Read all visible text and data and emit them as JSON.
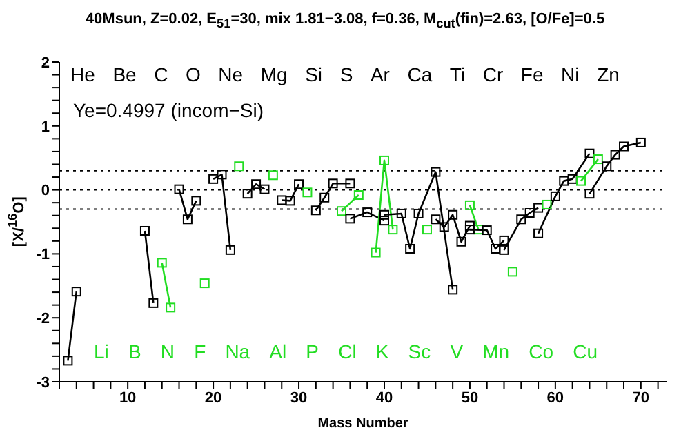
{
  "chart_data": {
    "type": "line",
    "title": "40Msun, Z=0.02, E$_{51}$=30, mix 1.81−3.08, f=0.36, M$_{cut}$(fin)=2.63, [O/Fe]=0.5",
    "xlabel": "Mass Number",
    "ylabel": "[X/$^{16}$O]",
    "marker": "square",
    "line_style": "solid",
    "xlim": [
      2,
      73
    ],
    "ylim": [
      -3,
      2
    ],
    "xticks": [
      {
        "value": 2,
        "label": null
      },
      {
        "value": 4,
        "label": null
      },
      {
        "value": 6,
        "label": null
      },
      {
        "value": 8,
        "label": null
      },
      10,
      {
        "value": 12,
        "label": null
      },
      {
        "value": 14,
        "label": null
      },
      {
        "value": 16,
        "label": null
      },
      {
        "value": 18,
        "label": null
      },
      20,
      {
        "value": 22,
        "label": null
      },
      {
        "value": 24,
        "label": null
      },
      {
        "value": 26,
        "label": null
      },
      {
        "value": 28,
        "label": null
      },
      30,
      {
        "value": 32,
        "label": null
      },
      {
        "value": 34,
        "label": null
      },
      {
        "value": 36,
        "label": null
      },
      {
        "value": 38,
        "label": null
      },
      40,
      {
        "value": 42,
        "label": null
      },
      {
        "value": 44,
        "label": null
      },
      {
        "value": 46,
        "label": null
      },
      {
        "value": 48,
        "label": null
      },
      50,
      {
        "value": 52,
        "label": null
      },
      {
        "value": 54,
        "label": null
      },
      {
        "value": 56,
        "label": null
      },
      {
        "value": 58,
        "label": null
      },
      60,
      {
        "value": 62,
        "label": null
      },
      {
        "value": 64,
        "label": null
      },
      {
        "value": 66,
        "label": null
      },
      {
        "value": 68,
        "label": null
      },
      70,
      {
        "value": 72,
        "label": null
      }
    ],
    "yticks": [
      -3,
      {
        "value": -2.8,
        "label": null
      },
      {
        "value": -2.6,
        "label": null
      },
      {
        "value": -2.4,
        "label": null
      },
      {
        "value": -2.2,
        "label": null
      },
      -2,
      {
        "value": -1.8,
        "label": null
      },
      {
        "value": -1.6,
        "label": null
      },
      {
        "value": -1.4,
        "label": null
      },
      {
        "value": -1.2,
        "label": null
      },
      -1,
      {
        "value": -0.8,
        "label": null
      },
      {
        "value": -0.6,
        "label": null
      },
      {
        "value": -0.4,
        "label": null
      },
      {
        "value": -0.2,
        "label": null
      },
      0,
      {
        "value": 0.2,
        "label": null
      },
      {
        "value": 0.4,
        "label": null
      },
      {
        "value": 0.6,
        "label": null
      },
      {
        "value": 0.8,
        "label": null
      },
      1,
      {
        "value": 1.2,
        "label": null
      },
      {
        "value": 1.4,
        "label": null
      },
      {
        "value": 1.6,
        "label": null
      },
      {
        "value": 1.8,
        "label": null
      },
      2
    ],
    "ref_lines": [
      {
        "axis": "y",
        "value": 0.3,
        "line_style": "dotted",
        "color": "#000000"
      },
      {
        "axis": "y",
        "value": 0,
        "line_style": "dotted",
        "color": "#000000"
      },
      {
        "axis": "y",
        "value": -0.3,
        "line_style": "dotted",
        "color": "#000000"
      }
    ],
    "series": [
      {
        "color": "#000000",
        "x": [
          3,
          4
        ],
        "values": [
          -2.67,
          -1.59
        ]
      },
      {
        "color": "#000000",
        "x": [
          12,
          13
        ],
        "values": [
          -0.64,
          -1.77
        ]
      },
      {
        "color": "#22dd22",
        "x": [
          14,
          15
        ],
        "values": [
          -1.14,
          -1.84
        ]
      },
      {
        "color": "#000000",
        "x": [
          16,
          17,
          18
        ],
        "values": [
          0.01,
          -0.46,
          -0.17
        ]
      },
      {
        "color": "#22dd22",
        "x": [
          19
        ],
        "values": [
          -1.46
        ]
      },
      {
        "color": "#000000",
        "x": [
          20,
          21,
          22
        ],
        "values": [
          0.17,
          0.24,
          -0.94
        ]
      },
      {
        "color": "#22dd22",
        "x": [
          23
        ],
        "values": [
          0.37
        ]
      },
      {
        "color": "#000000",
        "x": [
          24,
          25,
          26
        ],
        "values": [
          -0.06,
          0.09,
          0.01
        ]
      },
      {
        "color": "#22dd22",
        "x": [
          27
        ],
        "values": [
          0.23
        ]
      },
      {
        "color": "#000000",
        "x": [
          28,
          29,
          30
        ],
        "values": [
          -0.16,
          -0.17,
          0.09
        ]
      },
      {
        "color": "#22dd22",
        "x": [
          31
        ],
        "values": [
          -0.04
        ]
      },
      {
        "color": "#000000",
        "x": [
          32,
          33,
          34,
          36
        ],
        "values": [
          -0.32,
          -0.12,
          0.1,
          0.1
        ]
      },
      {
        "color": "#22dd22",
        "x": [
          35,
          37
        ],
        "values": [
          -0.33,
          -0.08
        ]
      },
      {
        "color": "#000000",
        "x": [
          36,
          38,
          40
        ],
        "values": [
          -0.45,
          -0.35,
          -0.48
        ]
      },
      {
        "color": "#22dd22",
        "x": [
          39,
          40,
          41
        ],
        "values": [
          -0.98,
          0.46,
          -0.62
        ]
      },
      {
        "color": "#000000",
        "x": [
          40,
          42,
          43,
          44,
          46,
          48
        ],
        "values": [
          -0.39,
          -0.37,
          -0.92,
          -0.37,
          0.28,
          -1.56
        ]
      },
      {
        "color": "#22dd22",
        "x": [
          45
        ],
        "values": [
          -0.62
        ]
      },
      {
        "color": "#000000",
        "x": [
          46,
          47,
          48,
          49,
          50
        ],
        "values": [
          -0.46,
          -0.58,
          -0.39,
          -0.81,
          -0.56
        ]
      },
      {
        "color": "#22dd22",
        "x": [
          50,
          51
        ],
        "values": [
          -0.24,
          -0.62
        ]
      },
      {
        "color": "#000000",
        "x": [
          50,
          52,
          53,
          54
        ],
        "values": [
          -0.62,
          -0.63,
          -0.92,
          -0.79
        ]
      },
      {
        "color": "#22dd22",
        "x": [
          55
        ],
        "values": [
          -1.28
        ]
      },
      {
        "color": "#000000",
        "x": [
          54,
          56,
          57,
          58
        ],
        "values": [
          -0.94,
          -0.46,
          -0.36,
          -0.28
        ]
      },
      {
        "color": "#22dd22",
        "x": [
          59
        ],
        "values": [
          -0.23
        ]
      },
      {
        "color": "#000000",
        "x": [
          58,
          60,
          61,
          62,
          64
        ],
        "values": [
          -0.68,
          -0.1,
          0.14,
          0.17,
          0.57
        ]
      },
      {
        "color": "#22dd22",
        "x": [
          63,
          65
        ],
        "values": [
          0.14,
          0.48
        ]
      },
      {
        "color": "#000000",
        "x": [
          64,
          66,
          67,
          68,
          70
        ],
        "values": [
          -0.06,
          0.37,
          0.55,
          0.68,
          0.74
        ]
      }
    ],
    "annotations": [
      "Ye=0.4997 (incom−Si)",
      "He Be C O Ne Mg Si S Ar Ca Ti Cr Fe Ni Zn",
      "Li B N F Na Al P Cl K Sc V Mn Co Cu"
    ]
  }
}
